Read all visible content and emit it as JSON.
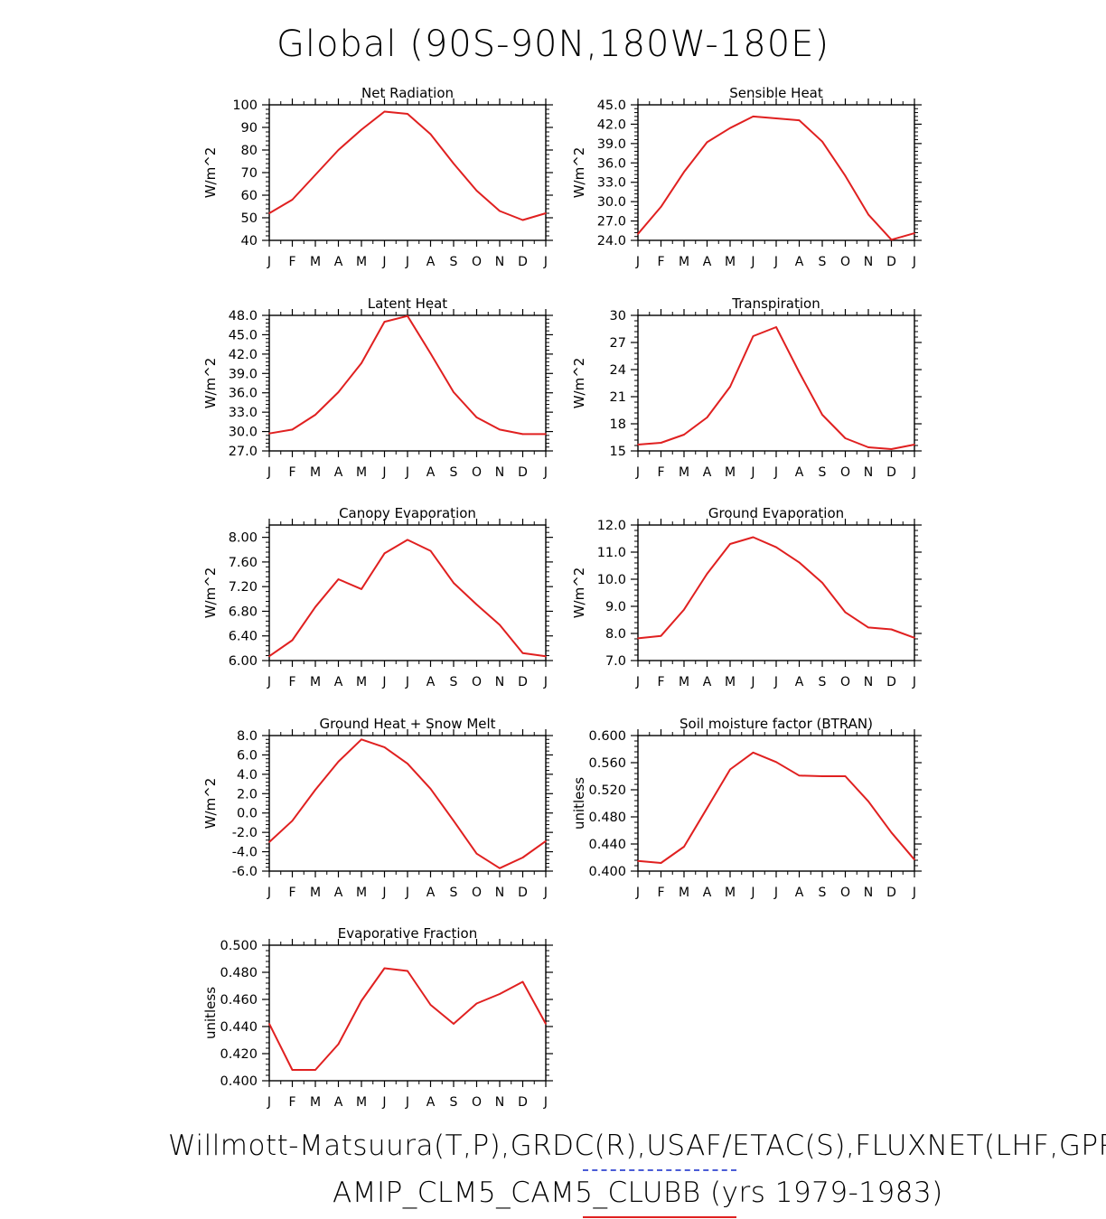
{
  "title": "Global (90S-90N,180W-180E)",
  "footer": {
    "observations": "Willmott-Matsuura(T,P),GRDC(R),USAF/ETAC(S),FLUXNET(LHF,GPP)",
    "model": "AMIP_CLM5_CAM5_CLUBB (yrs 1979-1983)"
  },
  "colors": {
    "model_line": "#e02020",
    "obs_legend": "#4a5cd6"
  },
  "month_labels": [
    "J",
    "F",
    "M",
    "A",
    "M",
    "J",
    "J",
    "A",
    "S",
    "O",
    "N",
    "D",
    "J"
  ],
  "chart_data": [
    {
      "type": "line",
      "title": "Net Radiation",
      "ylabel": "W/m^2",
      "ylim": [
        40,
        100
      ],
      "yticks": [
        "40",
        "50",
        "60",
        "70",
        "80",
        "90",
        "100"
      ],
      "values": [
        52,
        58,
        69,
        80,
        89,
        97,
        96,
        87,
        74,
        62,
        53,
        49,
        52
      ]
    },
    {
      "type": "line",
      "title": "Sensible Heat",
      "ylabel": "W/m^2",
      "ylim": [
        24,
        45
      ],
      "yticks": [
        "24.0",
        "27.0",
        "30.0",
        "33.0",
        "36.0",
        "39.0",
        "42.0",
        "45.0"
      ],
      "values": [
        25.0,
        29.2,
        34.6,
        39.2,
        41.4,
        43.2,
        42.9,
        42.6,
        39.3,
        34.0,
        28.0,
        24.1,
        25.1
      ]
    },
    {
      "type": "line",
      "title": "Latent Heat",
      "ylabel": "W/m^2",
      "ylim": [
        27,
        48
      ],
      "yticks": [
        "27.0",
        "30.0",
        "33.0",
        "36.0",
        "39.0",
        "42.0",
        "45.0",
        "48.0"
      ],
      "values": [
        29.7,
        30.3,
        32.6,
        36.1,
        40.6,
        47.0,
        47.9,
        42.1,
        36.1,
        32.2,
        30.3,
        29.6,
        29.6
      ]
    },
    {
      "type": "line",
      "title": "Transpiration",
      "ylabel": "W/m^2",
      "ylim": [
        15,
        30
      ],
      "yticks": [
        "15",
        "18",
        "21",
        "24",
        "27",
        "30"
      ],
      "values": [
        15.7,
        15.9,
        16.8,
        18.7,
        22.1,
        27.7,
        28.7,
        23.7,
        19.0,
        16.4,
        15.4,
        15.2,
        15.7
      ]
    },
    {
      "type": "line",
      "title": "Canopy Evaporation",
      "ylabel": "W/m^2",
      "ylim": [
        6.0,
        8.2
      ],
      "yticks": [
        "6.00",
        "6.40",
        "6.80",
        "7.20",
        "7.60",
        "8.00"
      ],
      "values": [
        6.07,
        6.33,
        6.87,
        7.32,
        7.16,
        7.74,
        7.96,
        7.78,
        7.26,
        6.91,
        6.58,
        6.12,
        6.07
      ]
    },
    {
      "type": "line",
      "title": "Ground Evaporation",
      "ylabel": "W/m^2",
      "ylim": [
        7.0,
        12.0
      ],
      "yticks": [
        "7.0",
        "8.0",
        "9.0",
        "10.0",
        "11.0",
        "12.0"
      ],
      "values": [
        7.82,
        7.91,
        8.88,
        10.2,
        11.3,
        11.55,
        11.18,
        10.62,
        9.87,
        8.78,
        8.22,
        8.15,
        7.84
      ]
    },
    {
      "type": "line",
      "title": "Ground Heat + Snow Melt",
      "ylabel": "W/m^2",
      "ylim": [
        -6.0,
        8.0
      ],
      "yticks": [
        "-6.0",
        "-4.0",
        "-2.0",
        "0.0",
        "2.0",
        "4.0",
        "6.0",
        "8.0"
      ],
      "values": [
        -3.0,
        -0.8,
        2.4,
        5.3,
        7.6,
        6.8,
        5.1,
        2.5,
        -0.8,
        -4.2,
        -5.7,
        -4.6,
        -2.9
      ]
    },
    {
      "type": "line",
      "title": "Soil moisture factor (BTRAN)",
      "ylabel": "unitless",
      "ylim": [
        0.4,
        0.6
      ],
      "yticks": [
        "0.400",
        "0.440",
        "0.480",
        "0.520",
        "0.560",
        "0.600"
      ],
      "values": [
        0.415,
        0.412,
        0.436,
        0.493,
        0.55,
        0.575,
        0.561,
        0.541,
        0.54,
        0.54,
        0.503,
        0.457,
        0.417
      ]
    },
    {
      "type": "line",
      "title": "Evaporative Fraction",
      "ylabel": "unitless",
      "ylim": [
        0.4,
        0.5
      ],
      "yticks": [
        "0.400",
        "0.420",
        "0.440",
        "0.460",
        "0.480",
        "0.500"
      ],
      "values": [
        0.442,
        0.408,
        0.408,
        0.427,
        0.459,
        0.483,
        0.481,
        0.456,
        0.442,
        0.457,
        0.464,
        0.473,
        0.442
      ]
    }
  ]
}
